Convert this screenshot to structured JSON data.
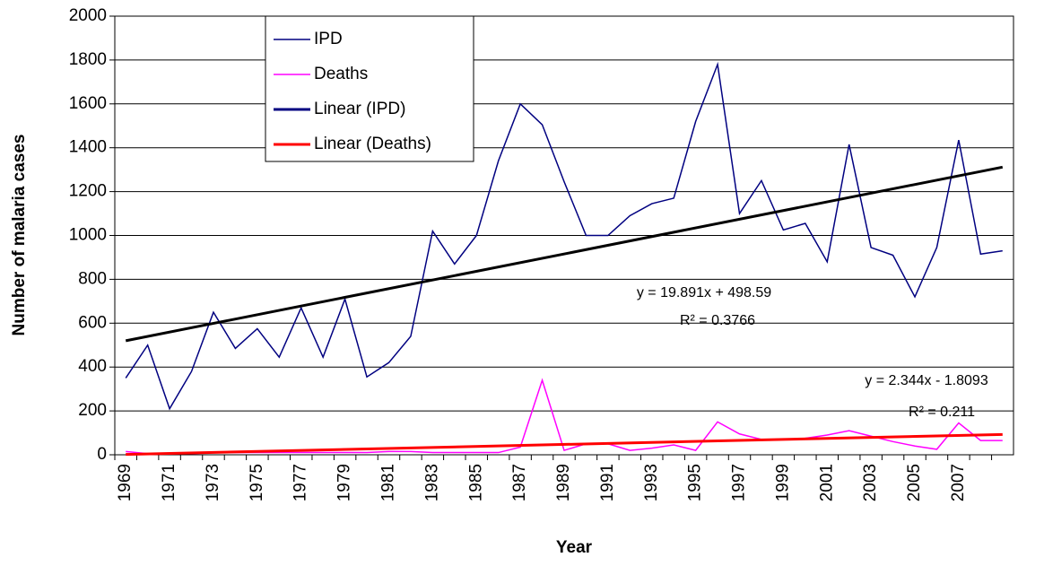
{
  "chart_data": {
    "type": "line",
    "y_label": "Number of malaria cases",
    "x_label": "Year",
    "categories": [
      "1969",
      null,
      "1971",
      null,
      "1973",
      null,
      "1975",
      null,
      "1977",
      null,
      "1979",
      null,
      "1981",
      null,
      "1983",
      null,
      "1985",
      null,
      "1987",
      null,
      "1989",
      null,
      "1991",
      null,
      "1993",
      null,
      "1995",
      null,
      "1997",
      null,
      "1999",
      null,
      "2001",
      null,
      "2003",
      null,
      "2005",
      null,
      "2007",
      null,
      null
    ],
    "series": [
      {
        "name": "IPD",
        "color": "#000080",
        "values": [
          350,
          500,
          210,
          380,
          650,
          485,
          575,
          445,
          670,
          445,
          710,
          355,
          420,
          540,
          1020,
          870,
          1000,
          1340,
          1600,
          1505,
          1245,
          1000,
          1000,
          1090,
          1145,
          1170,
          1520,
          1780,
          1100,
          1250,
          1025,
          1055,
          880,
          1415,
          945,
          910,
          720,
          945,
          1435,
          915,
          930
        ]
      },
      {
        "name": "Deaths",
        "color": "#ff00ff",
        "values": [
          15,
          5,
          5,
          5,
          10,
          10,
          10,
          10,
          10,
          10,
          10,
          10,
          15,
          15,
          10,
          10,
          10,
          10,
          35,
          340,
          20,
          50,
          50,
          20,
          30,
          45,
          20,
          150,
          95,
          70,
          70,
          75,
          90,
          110,
          85,
          60,
          40,
          25,
          145,
          65,
          65
        ]
      }
    ],
    "trendlines": [
      {
        "name": "Linear (IPD)",
        "color": "#000000",
        "legend_color": "#000080",
        "equation": "y = 19.891x + 498.59",
        "r2": "R² = 0.3766"
      },
      {
        "name": "Linear (Deaths)",
        "color": "#ff0000",
        "legend_color": "#ff0000",
        "equation": "y = 2.344x - 1.8093",
        "r2": "R² = 0.211"
      }
    ],
    "ylim": [
      0,
      2000
    ],
    "yticks": [
      0,
      200,
      400,
      600,
      800,
      1000,
      1200,
      1400,
      1600,
      1800,
      2000
    ],
    "grid": true,
    "legend": "top-left"
  }
}
